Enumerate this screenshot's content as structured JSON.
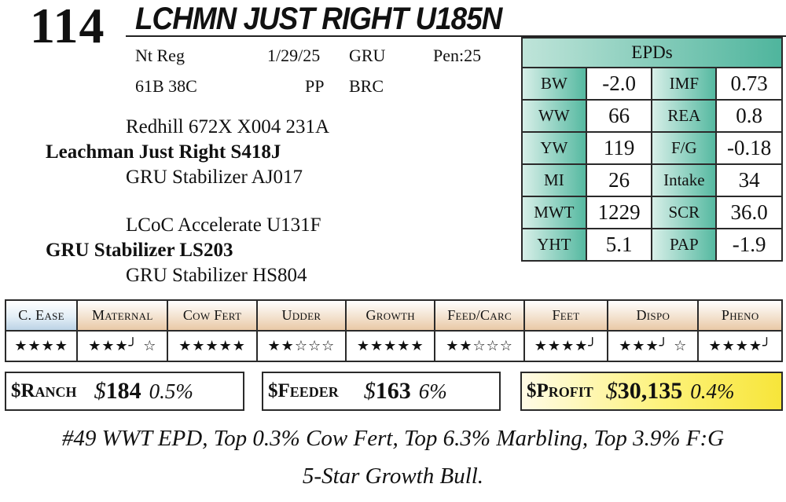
{
  "lot": "114",
  "name": "LCHMN JUST RIGHT U185N",
  "info": {
    "reg": "Nt Reg",
    "birth_date": "1/29/25",
    "breeder": "GRU",
    "pen": "Pen:25",
    "tattoo": "61B 38C",
    "polled": "PP",
    "color": "BRC"
  },
  "pedigree": {
    "sire_sire": "Redhill 672X X004 231A",
    "sire": "Leachman Just Right S418J",
    "sire_dam": "GRU Stabilizer AJ017",
    "dam_sire": "LCoC Accelerate U131F",
    "dam": "GRU Stabilizer LS203",
    "dam_dam": "GRU Stabilizer HS804"
  },
  "epd_header": "EPDs",
  "epds": [
    {
      "l1": "BW",
      "v1": "-2.0",
      "l2": "IMF",
      "v2": "0.73"
    },
    {
      "l1": "WW",
      "v1": "66",
      "l2": "REA",
      "v2": "0.8"
    },
    {
      "l1": "YW",
      "v1": "119",
      "l2": "F/G",
      "v2": "-0.18"
    },
    {
      "l1": "MI",
      "v1": "26",
      "l2": "Intake",
      "v2": "34"
    },
    {
      "l1": "MWT",
      "v1": "1229",
      "l2": "SCR",
      "v2": "36.0"
    },
    {
      "l1": "YHT",
      "v1": "5.1",
      "l2": "PAP",
      "v2": "-1.9"
    }
  ],
  "ratings": [
    {
      "cat": "C. Ease",
      "stars": "★★★★",
      "tone": "blue"
    },
    {
      "cat": "Maternal",
      "stars": "★★★╯ ☆",
      "tone": "tan"
    },
    {
      "cat": "Cow Fert",
      "stars": "★★★★★",
      "tone": "tan"
    },
    {
      "cat": "Udder",
      "stars": "★★☆☆☆",
      "tone": "tan"
    },
    {
      "cat": "Growth",
      "stars": "★★★★★",
      "tone": "tan"
    },
    {
      "cat": "Feed/Carc",
      "stars": "★★☆☆☆",
      "tone": "tan"
    },
    {
      "cat": "Feet",
      "stars": "★★★★╯",
      "tone": "tan"
    },
    {
      "cat": "Dispo",
      "stars": "★★★╯ ☆",
      "tone": "tan"
    },
    {
      "cat": "Pheno",
      "stars": "★★★★╯",
      "tone": "tan"
    }
  ],
  "indexes": {
    "ranch": {
      "label": "$Ranch",
      "value": "184",
      "pct": "0.5%"
    },
    "feeder": {
      "label": "$Feeder",
      "value": "163",
      "pct": "6%"
    },
    "profit": {
      "label": "$Profit",
      "value": "30,135",
      "pct": "0.4%"
    }
  },
  "notes": [
    "#49 WWT EPD, Top 0.3% Cow Fert, Top 6.3% Marbling, Top 3.9% F:G",
    "5-Star Growth Bull."
  ]
}
